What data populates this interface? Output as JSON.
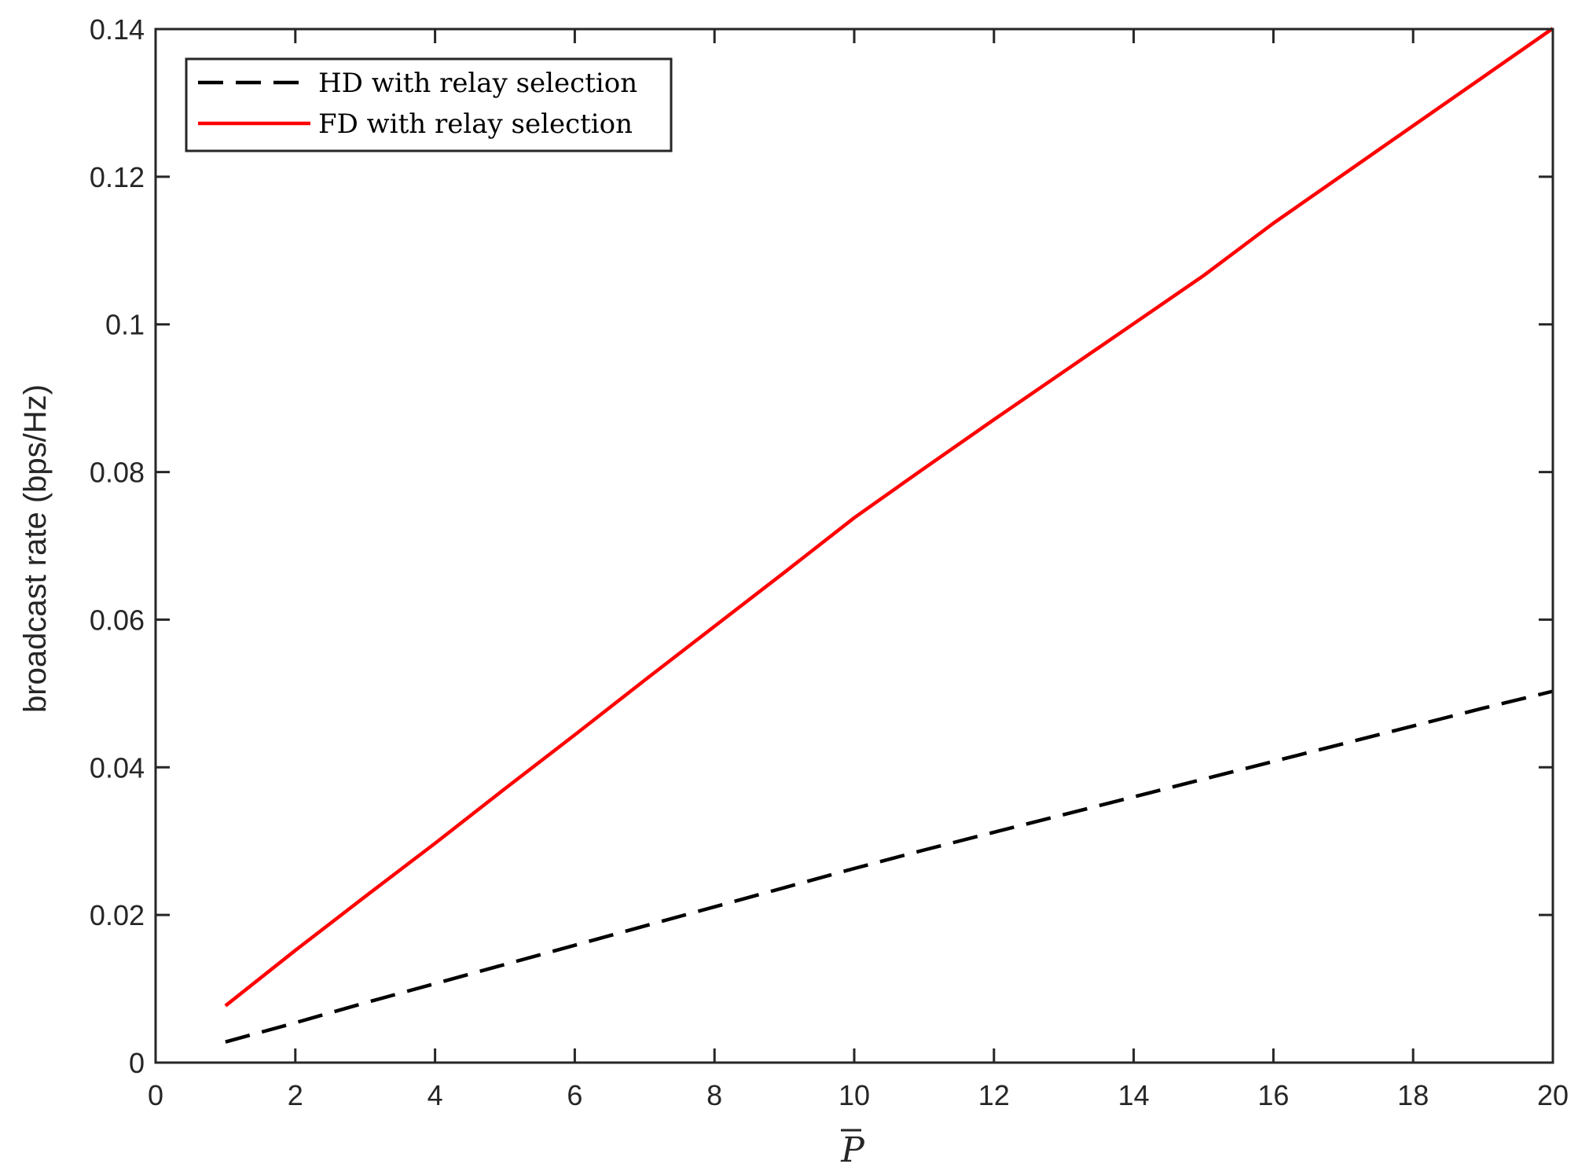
{
  "chart_data": {
    "type": "line",
    "title": "",
    "xlabel": "P",
    "xlabel_bar": true,
    "ylabel": "broadcast rate (bps/Hz)",
    "xlim": [
      0,
      20
    ],
    "ylim": [
      0,
      0.14
    ],
    "x_ticks": [
      "0",
      "2",
      "4",
      "6",
      "8",
      "10",
      "12",
      "14",
      "16",
      "18",
      "20"
    ],
    "y_ticks": [
      "0",
      "0.02",
      "0.04",
      "0.06",
      "0.08",
      "0.1",
      "0.12",
      "0.14"
    ],
    "grid": false,
    "legend_position": "top-left",
    "series": [
      {
        "name": "HD with relay selection",
        "color": "#000000",
        "style": "dashed",
        "x": [
          1,
          2,
          3,
          4,
          5,
          6,
          7,
          8,
          9,
          10,
          11,
          12,
          13,
          14,
          15,
          16,
          17,
          18,
          19,
          20
        ],
        "y": [
          0.0028,
          0.0054,
          0.0081,
          0.0107,
          0.0133,
          0.0159,
          0.0185,
          0.0211,
          0.0237,
          0.0263,
          0.0288,
          0.0312,
          0.0336,
          0.036,
          0.0384,
          0.0408,
          0.0432,
          0.0456,
          0.048,
          0.0503
        ]
      },
      {
        "name": "FD with relay selection",
        "color": "#ff0000",
        "style": "solid",
        "x": [
          1,
          2,
          3,
          4,
          5,
          6,
          7,
          8,
          9,
          10,
          11,
          12,
          13,
          14,
          15,
          16,
          17,
          18,
          19,
          20
        ],
        "y": [
          0.0077,
          0.0152,
          0.0225,
          0.0297,
          0.0371,
          0.0444,
          0.0518,
          0.0591,
          0.0664,
          0.0738,
          0.0805,
          0.0871,
          0.0936,
          0.1001,
          0.1066,
          0.1137,
          0.1203,
          0.1269,
          0.1335,
          0.1401
        ]
      }
    ]
  }
}
